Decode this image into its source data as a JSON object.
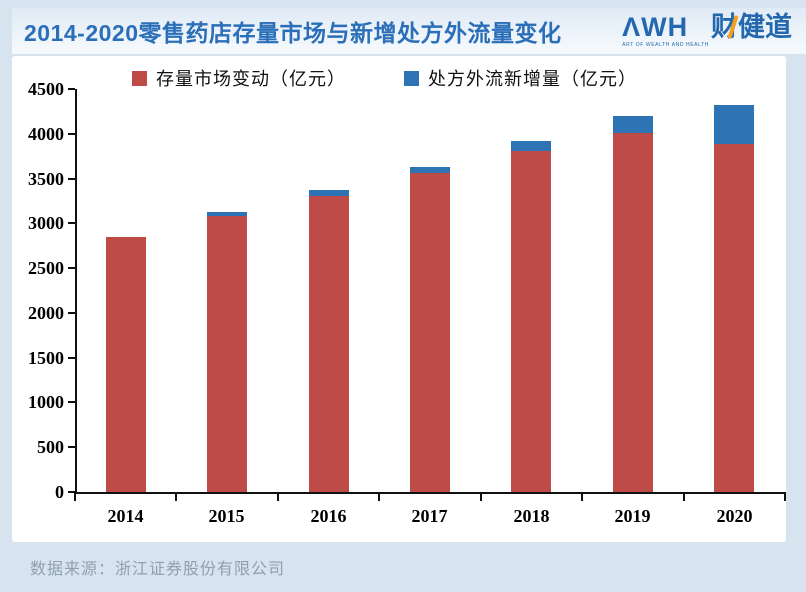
{
  "header": {
    "title": "2014-2020零售药店存量市场与新增处方外流量变化",
    "logo": {
      "latin": "ΛWH",
      "chinese": "财健道",
      "tagline": "ART OF WEALTH AND HEALTH"
    }
  },
  "footer": {
    "source": "数据来源：浙江证券股份有限公司"
  },
  "colors": {
    "stock_red": "#bf4b48",
    "outflow_blue": "#2e74b5",
    "title_blue": "#2b6fb8",
    "logo_blue": "#2368ae",
    "logo_orange": "#f0a01e",
    "page_background": "#d7e3ef",
    "card_background": "#ffffff",
    "source_gray": "#90a0ae"
  },
  "chart_data": {
    "type": "bar",
    "stacked": true,
    "title": "2014-2020零售药店存量市场与新增处方外流量变化",
    "categories": [
      "2014",
      "2015",
      "2016",
      "2017",
      "2018",
      "2019",
      "2020"
    ],
    "series": [
      {
        "name": "存量市场变动（亿元）",
        "color": "#bf4b48",
        "values": [
          2850,
          3080,
          3310,
          3560,
          3810,
          4010,
          3890
        ]
      },
      {
        "name": "处方外流新增量（亿元）",
        "color": "#2e74b5",
        "values": [
          0,
          40,
          65,
          70,
          110,
          190,
          430
        ]
      }
    ],
    "totals": [
      2850,
      3120,
      3375,
      3630,
      3920,
      4200,
      4320
    ],
    "xlabel": "",
    "ylabel": "",
    "ylim": [
      0,
      4500
    ],
    "yticks": [
      0,
      500,
      1000,
      1500,
      2000,
      2500,
      3000,
      3500,
      4000,
      4500
    ],
    "grid": false,
    "legend_position": "top"
  }
}
